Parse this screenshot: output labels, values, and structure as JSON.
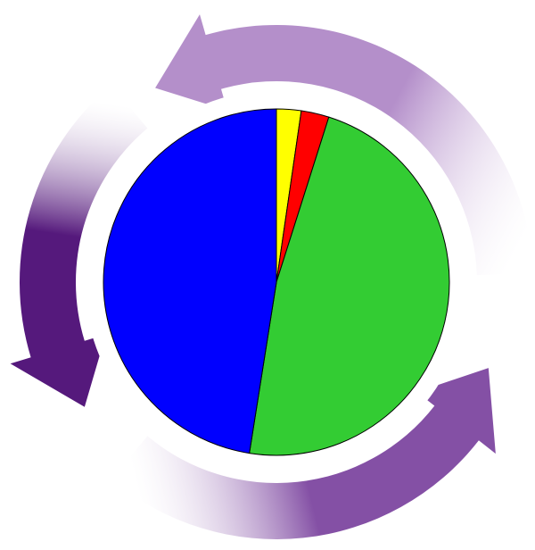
{
  "chart_data": {
    "type": "pie",
    "values": [
      2.3,
      2.6,
      47.6,
      47.5
    ],
    "colors": [
      "#ffff00",
      "#ff0000",
      "#33cc33",
      "#0000ff"
    ]
  }
}
